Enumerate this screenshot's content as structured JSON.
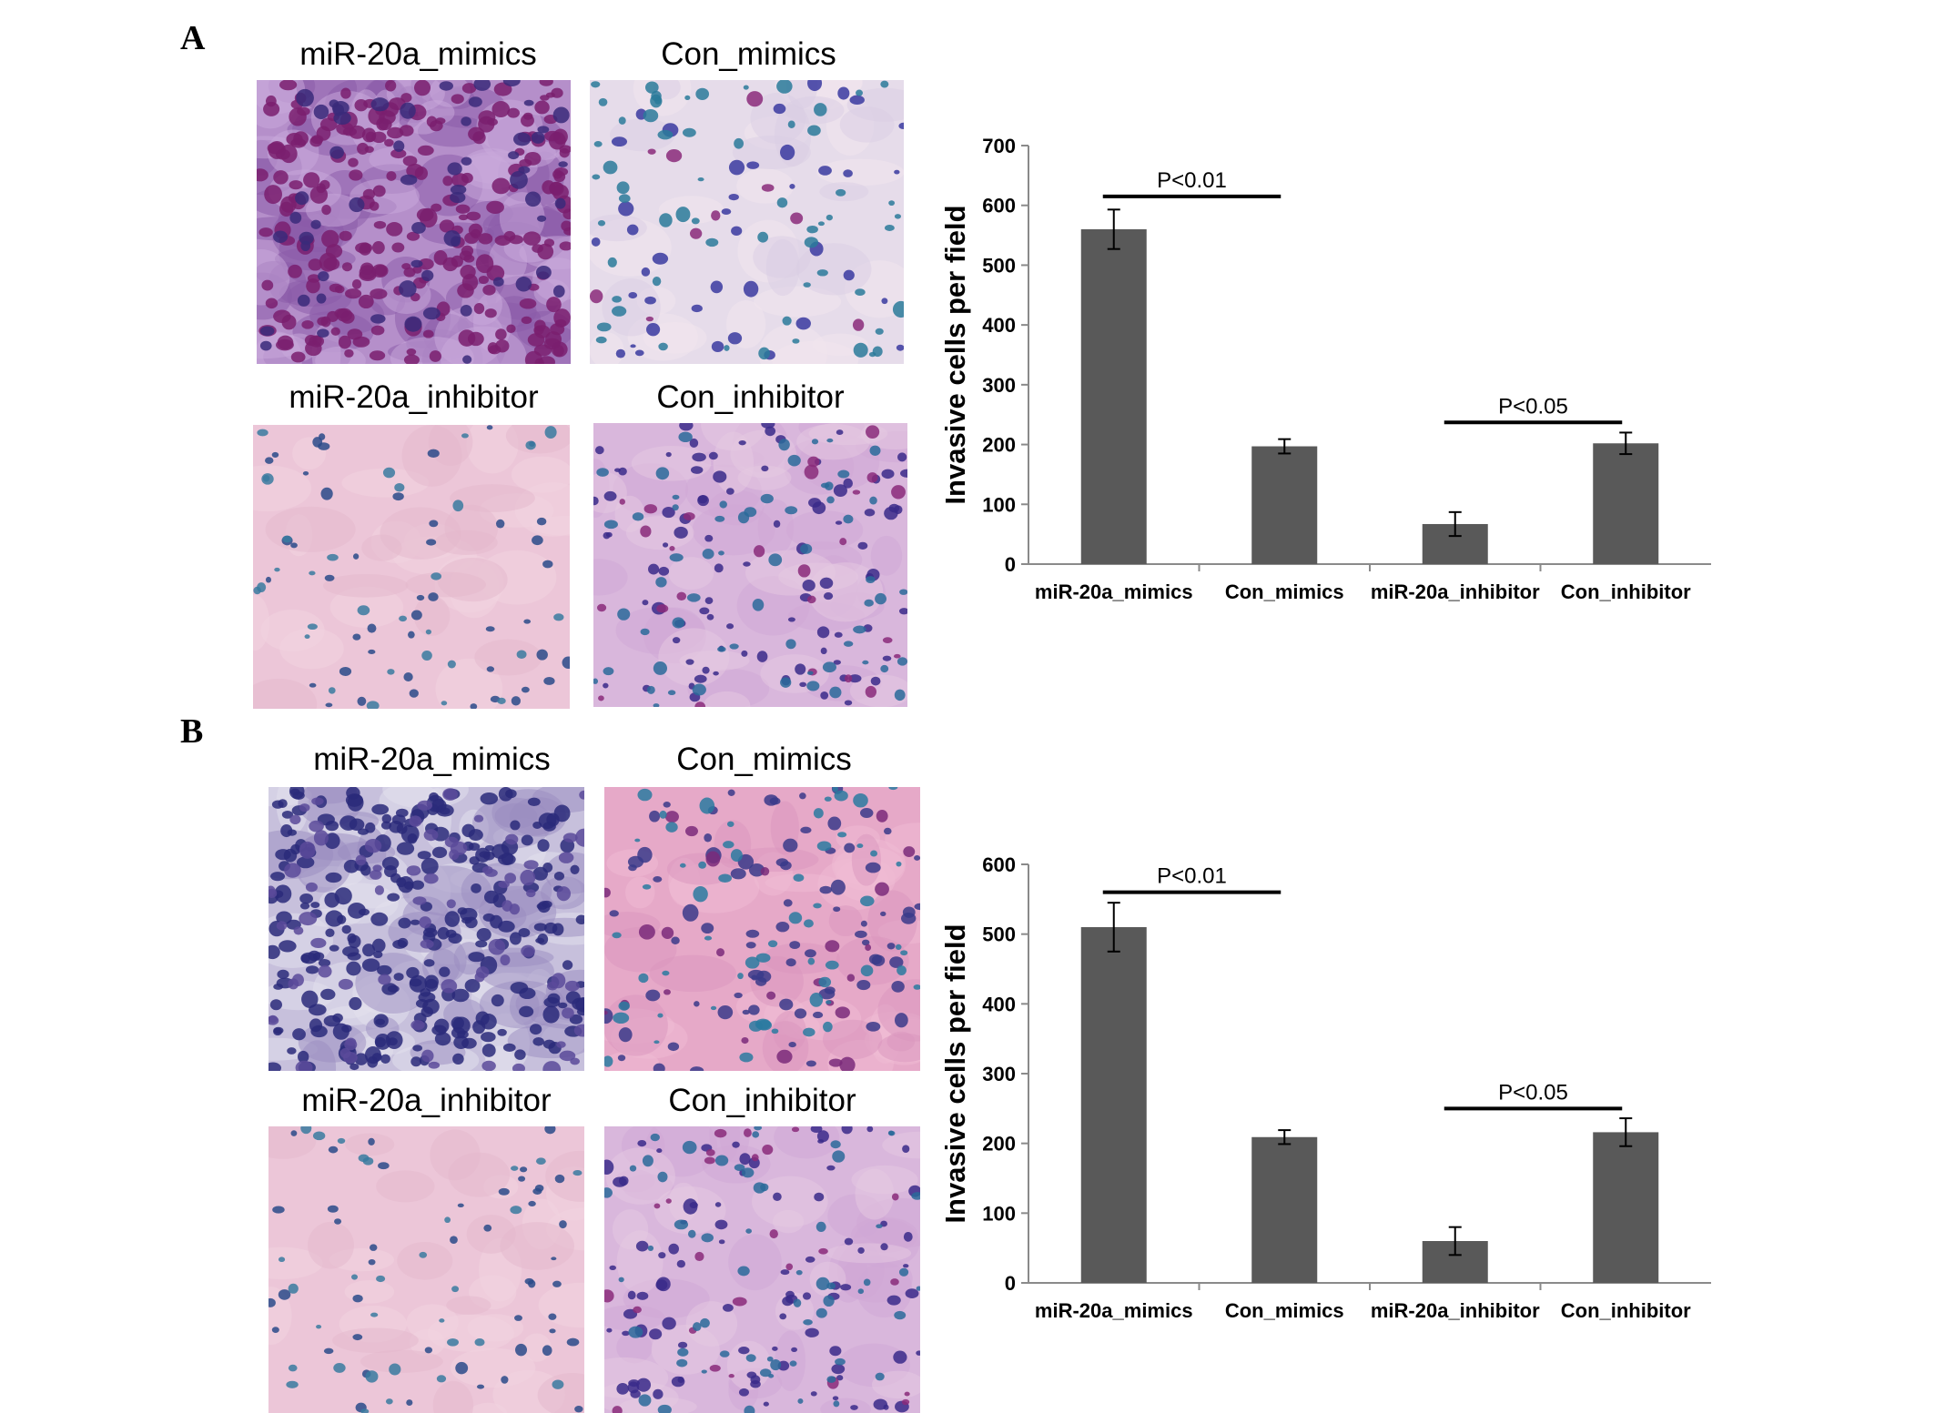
{
  "panels": [
    {
      "label": "A",
      "images": [
        {
          "title": "miR-20a_mimics",
          "style": "dense-pink"
        },
        {
          "title": "Con_mimics",
          "style": "sparse-light"
        },
        {
          "title": "miR-20a_inhibitor",
          "style": "sparse-pink"
        },
        {
          "title": "Con_inhibitor",
          "style": "medium-lilac"
        }
      ]
    },
    {
      "label": "B",
      "images": [
        {
          "title": "miR-20a_mimics",
          "style": "dense-blue"
        },
        {
          "title": "Con_mimics",
          "style": "medium-pink"
        },
        {
          "title": "miR-20a_inhibitor",
          "style": "sparse-pink"
        },
        {
          "title": "Con_inhibitor",
          "style": "medium-lilac"
        }
      ]
    }
  ],
  "chart_data": [
    {
      "type": "bar",
      "ylabel": "Invasive cells per field",
      "categories": [
        "miR-20a_mimics",
        "Con_mimics",
        "miR-20a_inhibitor",
        "Con_inhibitor"
      ],
      "values": [
        560,
        197,
        67,
        202
      ],
      "errors": [
        33,
        12,
        20,
        18
      ],
      "ylim": [
        0,
        700
      ],
      "yticks": [
        0,
        100,
        200,
        300,
        400,
        500,
        600,
        700
      ],
      "bar_color": "#595959",
      "annotations": [
        {
          "text": "P<0.01",
          "from": 0,
          "to": 1,
          "y": 615
        },
        {
          "text": "P<0.05",
          "from": 2,
          "to": 3,
          "y": 237
        }
      ]
    },
    {
      "type": "bar",
      "ylabel": "Invasive cells per field",
      "categories": [
        "miR-20a_mimics",
        "Con_mimics",
        "miR-20a_inhibitor",
        "Con_inhibitor"
      ],
      "values": [
        510,
        209,
        60,
        216
      ],
      "errors": [
        35,
        10,
        20,
        20
      ],
      "ylim": [
        0,
        600
      ],
      "yticks": [
        0,
        100,
        200,
        300,
        400,
        500,
        600
      ],
      "bar_color": "#595959",
      "annotations": [
        {
          "text": "P<0.01",
          "from": 0,
          "to": 1,
          "y": 560
        },
        {
          "text": "P<0.05",
          "from": 2,
          "to": 3,
          "y": 250
        }
      ]
    }
  ]
}
